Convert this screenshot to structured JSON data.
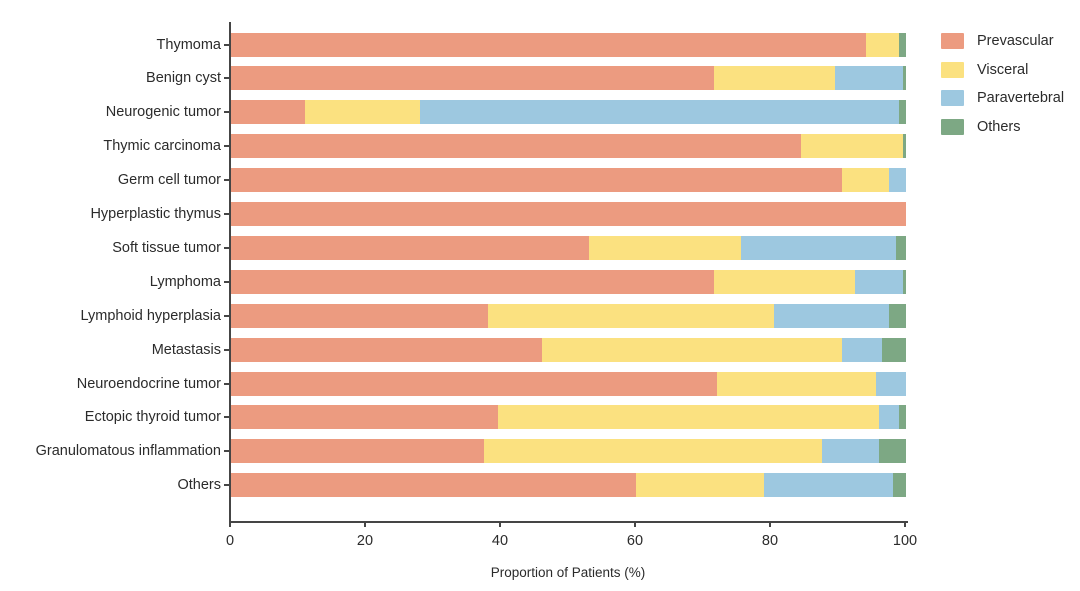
{
  "figure": {
    "background": "#ffffff",
    "axis_color": "#454545",
    "text_color": "#2b2b2b"
  },
  "chart_data": {
    "type": "bar",
    "variant": "horizontal_stacked",
    "title": "",
    "xlabel": "Proportion of Patients (%)",
    "ylabel": "",
    "xlim": [
      0,
      100
    ],
    "xticks": [
      0,
      20,
      40,
      60,
      80,
      100
    ],
    "grid": false,
    "legend_position": "top-right",
    "categories": [
      "Thymoma",
      "Benign cyst",
      "Neurogenic tumor",
      "Thymic carcinoma",
      "Germ cell tumor",
      "Hyperplastic thymus",
      "Soft tissue tumor",
      "Lymphoma",
      "Lymphoid hyperplasia",
      "Metastasis",
      "Neuroendocrine tumor",
      "Ectopic thyroid tumor",
      "Granulomatous inflammation",
      "Others"
    ],
    "series": [
      {
        "name": "Prevascular",
        "color": "#EC9B80",
        "values": [
          94,
          71.5,
          11,
          84.5,
          90.5,
          100,
          53,
          71.5,
          38,
          46,
          72,
          39.5,
          37.5,
          60
        ]
      },
      {
        "name": "Visceral",
        "color": "#FBE180",
        "values": [
          5,
          18,
          17,
          15,
          7,
          0,
          22.5,
          21,
          42.5,
          44.5,
          23.5,
          56.5,
          50,
          19
        ]
      },
      {
        "name": "Paravertebral",
        "color": "#9DC8E0",
        "values": [
          0,
          10,
          71,
          0,
          2.5,
          0,
          23,
          7,
          17,
          6,
          4.5,
          3,
          8.5,
          19
        ]
      },
      {
        "name": "Others",
        "color": "#7DA884",
        "values": [
          1,
          0.5,
          1,
          0.5,
          0,
          0,
          1.5,
          0.5,
          2.5,
          3.5,
          0,
          1,
          4,
          2
        ]
      }
    ]
  }
}
